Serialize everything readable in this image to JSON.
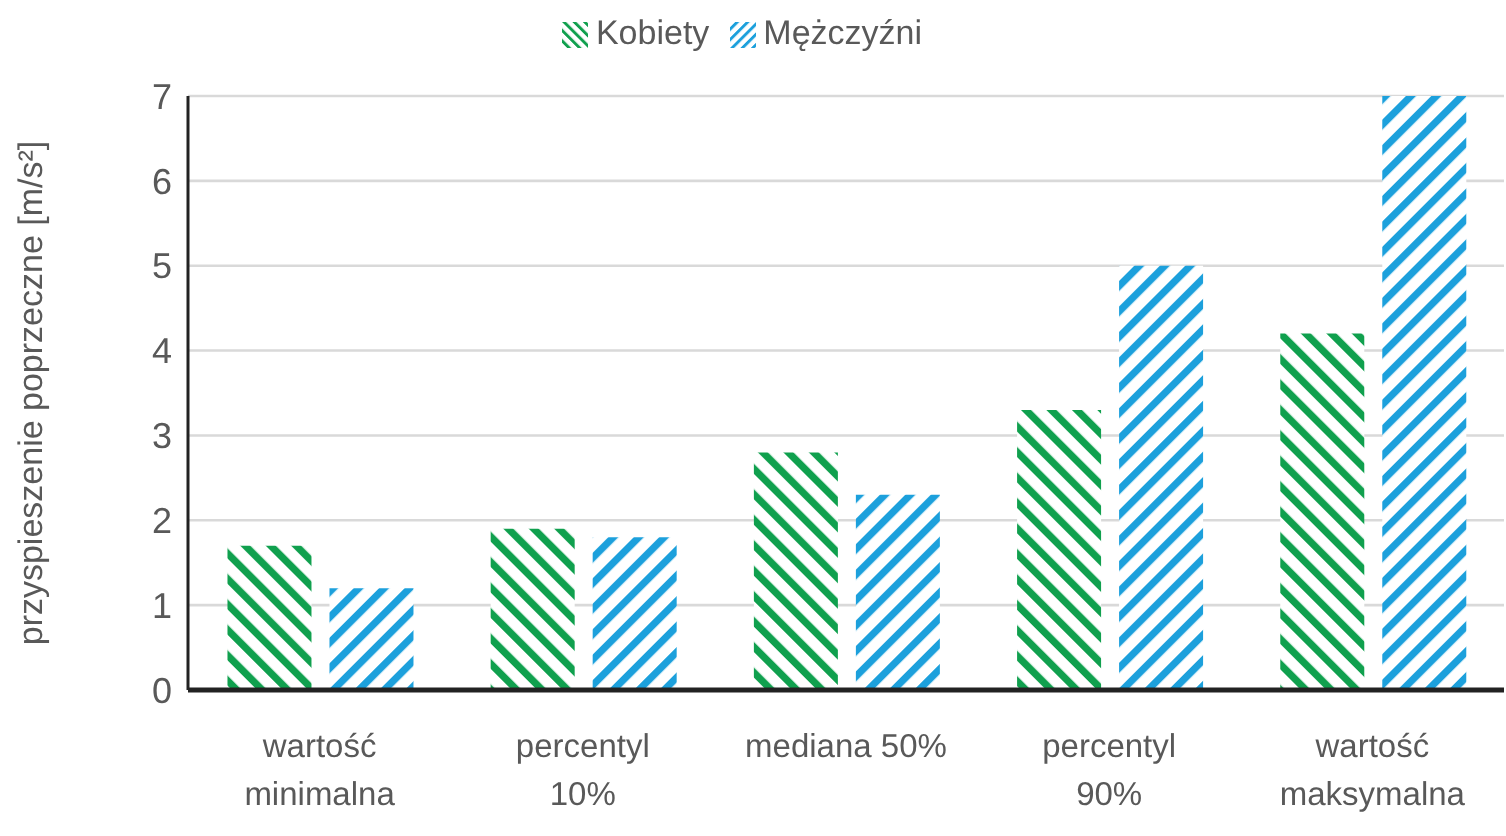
{
  "chart_data": {
    "type": "bar",
    "ylabel": "przyspieszenie poprzeczne [m/s²]",
    "categories": [
      "wartość minimalna",
      "percentyl 10%",
      "mediana 50%",
      "percentyl 90%",
      "wartość maksymalna"
    ],
    "series": [
      {
        "name": "Kobiety",
        "color": "#10a04e",
        "values": [
          1.7,
          1.9,
          2.8,
          3.3,
          4.2
        ]
      },
      {
        "name": "Mężczyźni",
        "color": "#1ca0dc",
        "values": [
          1.2,
          1.8,
          2.3,
          5.0,
          7.0
        ]
      }
    ],
    "ylim": [
      0,
      7
    ],
    "yticks": [
      0,
      1,
      2,
      3,
      4,
      5,
      6,
      7
    ],
    "grid": "y",
    "legend": "top"
  }
}
